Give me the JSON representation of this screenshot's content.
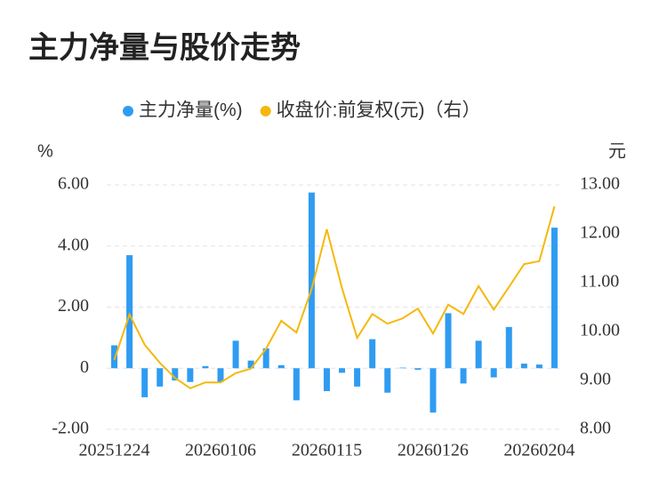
{
  "chart_data": {
    "type": "bar",
    "title": "主力净量与股价走势",
    "ylabel": "%",
    "y2label": "元",
    "categories": [
      "20251224",
      null,
      null,
      null,
      null,
      null,
      null,
      "20260106",
      null,
      null,
      null,
      null,
      null,
      null,
      "20260115",
      null,
      null,
      null,
      null,
      null,
      null,
      "20260126",
      null,
      null,
      null,
      null,
      null,
      null,
      "20260204",
      null
    ],
    "series": [
      {
        "name": "主力净量(%)",
        "type": "bar",
        "color": "#2f9cf2",
        "values": [
          0.75,
          3.7,
          -0.95,
          -0.6,
          -0.4,
          -0.45,
          0.07,
          -0.45,
          0.9,
          0.25,
          0.65,
          0.1,
          -1.05,
          5.75,
          -0.75,
          -0.15,
          -0.6,
          0.95,
          -0.8,
          0.02,
          -0.05,
          -1.45,
          1.8,
          -0.5,
          0.9,
          -0.3,
          1.35,
          0.15,
          0.12,
          4.6
        ]
      },
      {
        "name": "收盘价:前复权(元)（右）",
        "type": "line",
        "axis": "y2",
        "color": "#f5b80c",
        "values": [
          9.42,
          10.35,
          9.73,
          9.36,
          9.05,
          8.84,
          8.96,
          8.96,
          9.15,
          9.24,
          9.65,
          10.22,
          9.98,
          10.87,
          12.09,
          10.89,
          9.87,
          10.36,
          10.16,
          10.27,
          10.47,
          9.96,
          10.55,
          10.36,
          10.93,
          10.45,
          10.91,
          11.38,
          11.44,
          12.56
        ]
      }
    ],
    "ylim": [
      -2,
      6
    ],
    "yticks": [
      {
        "value": -2,
        "label": "-2.00"
      },
      0,
      {
        "value": 2,
        "label": "2.00"
      },
      {
        "value": 4,
        "label": "4.00"
      },
      {
        "value": 6,
        "label": "6.00"
      }
    ],
    "y2lim": [
      8,
      13
    ],
    "y2ticks": [
      {
        "value": 8,
        "label": "8.00"
      },
      {
        "value": 9,
        "label": "9.00"
      },
      {
        "value": 10,
        "label": "10.00"
      },
      {
        "value": 11,
        "label": "11.00"
      },
      {
        "value": 12,
        "label": "12.00"
      },
      {
        "value": 13,
        "label": "13.00"
      }
    ],
    "grid": true
  }
}
